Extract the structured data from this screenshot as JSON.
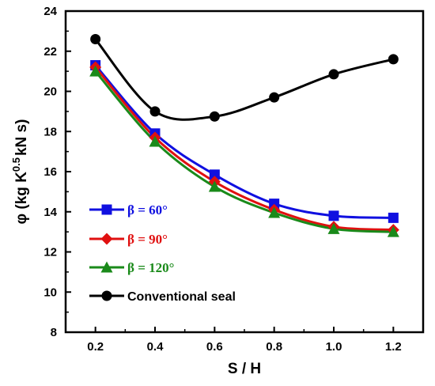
{
  "chart_data": {
    "type": "line",
    "xlabel": "S / H",
    "ylabel": {
      "main": "φ (kg K",
      "superscript": "0.5",
      "tail": "kN s)"
    },
    "xlim": [
      0.1,
      1.3
    ],
    "ylim": [
      8,
      24
    ],
    "x_ticks": [
      "0.2",
      "0.4",
      "0.6",
      "0.8",
      "1.0",
      "1.2"
    ],
    "y_ticks": [
      "8",
      "10",
      "12",
      "14",
      "16",
      "18",
      "20",
      "22",
      "24"
    ],
    "x": [
      0.2,
      0.4,
      0.6,
      0.8,
      1.0,
      1.2
    ],
    "legend_position": "lower-left",
    "grid": false,
    "series": [
      {
        "name": "β = 60°",
        "color": "#1010e0",
        "marker": "square",
        "values": [
          21.3,
          17.9,
          15.85,
          14.4,
          13.8,
          13.7
        ]
      },
      {
        "name": "β = 90°",
        "color": "#e01010",
        "marker": "diamond",
        "values": [
          21.2,
          17.7,
          15.5,
          14.1,
          13.25,
          13.1
        ]
      },
      {
        "name": "β = 120°",
        "color": "#1a8a1a",
        "marker": "triangle",
        "values": [
          21.0,
          17.5,
          15.25,
          13.95,
          13.15,
          13.0
        ]
      },
      {
        "name": "Conventional seal",
        "color": "#000000",
        "marker": "circle",
        "values": [
          22.6,
          19.0,
          18.75,
          19.7,
          20.85,
          21.6
        ]
      }
    ]
  }
}
